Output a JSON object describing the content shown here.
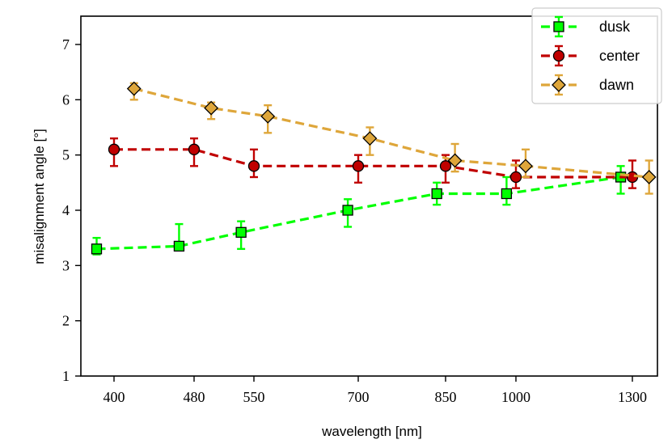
{
  "chart_data": {
    "type": "line",
    "title": "",
    "xlabel": "wavelength [nm]",
    "ylabel": "misalignment angle [°]",
    "ylim": [
      1,
      7.5
    ],
    "x_ticks": [
      400,
      480,
      550,
      700,
      850,
      1000,
      1300
    ],
    "x_tick_labels": [
      "400",
      "480",
      "550",
      "700",
      "850",
      "1000",
      "1300"
    ],
    "y_ticks": [
      1,
      2,
      3,
      4,
      5,
      6,
      7
    ],
    "y_tick_labels": [
      "1",
      "2",
      "3",
      "4",
      "5",
      "6",
      "7"
    ],
    "legend_position": "top-right",
    "series": [
      {
        "name": "dusk",
        "color": "#00ff00",
        "marker": "square",
        "x": [
          380,
          465,
          535,
          685,
          835,
          980,
          1270
        ],
        "y": [
          3.3,
          3.35,
          3.6,
          4.0,
          4.3,
          4.3,
          4.6
        ],
        "yerr_low": [
          0.1,
          0.05,
          0.3,
          0.3,
          0.2,
          0.2,
          0.3
        ],
        "yerr_high": [
          0.2,
          0.4,
          0.2,
          0.2,
          0.2,
          0.3,
          0.2
        ]
      },
      {
        "name": "center",
        "color": "#c00000",
        "marker": "circle",
        "x": [
          400,
          480,
          550,
          700,
          850,
          1000,
          1300
        ],
        "y": [
          5.1,
          5.1,
          4.8,
          4.8,
          4.8,
          4.6,
          4.6
        ],
        "yerr_low": [
          0.3,
          0.3,
          0.2,
          0.3,
          0.3,
          0.2,
          0.2
        ],
        "yerr_high": [
          0.2,
          0.2,
          0.3,
          0.2,
          0.2,
          0.3,
          0.3
        ]
      },
      {
        "name": "dawn",
        "color": "#dea63a",
        "marker": "diamond",
        "x": [
          420,
          500,
          570,
          720,
          870,
          1025,
          1330
        ],
        "y": [
          6.2,
          5.85,
          5.7,
          5.3,
          4.9,
          4.8,
          4.6
        ],
        "yerr_low": [
          0.2,
          0.2,
          0.3,
          0.3,
          0.2,
          0.2,
          0.3
        ],
        "yerr_high": [
          0.1,
          0.1,
          0.2,
          0.2,
          0.3,
          0.3,
          0.3
        ]
      }
    ]
  }
}
